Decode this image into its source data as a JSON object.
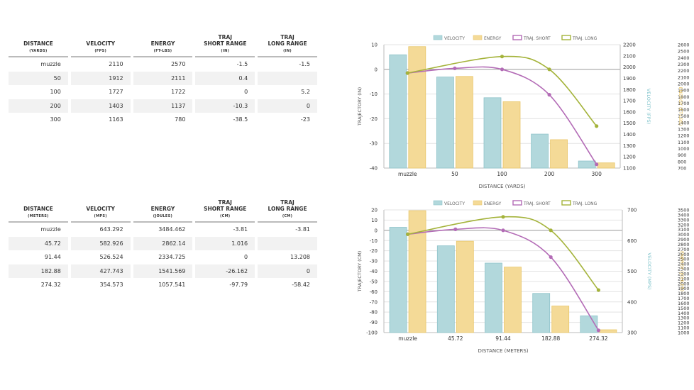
{
  "tables": [
    {
      "headers": [
        {
          "label": "DISTANCE",
          "unit": "(YARDS)"
        },
        {
          "label": "VELOCITY",
          "unit": "(FPS)"
        },
        {
          "label": "ENERGY",
          "unit": "(FT-LBS)"
        },
        {
          "label": "TRAJ\nSHORT RANGE",
          "unit": "(IN)"
        },
        {
          "label": "TRAJ\nLONG RANGE",
          "unit": "(IN)"
        }
      ],
      "rows": [
        [
          "muzzle",
          "2110",
          "2570",
          "-1.5",
          "-1.5"
        ],
        [
          "50",
          "1912",
          "2111",
          "0.4",
          ""
        ],
        [
          "100",
          "1727",
          "1722",
          "0",
          "5.2"
        ],
        [
          "200",
          "1403",
          "1137",
          "-10.3",
          "0"
        ],
        [
          "300",
          "1163",
          "780",
          "-38.5",
          "-23"
        ]
      ]
    },
    {
      "headers": [
        {
          "label": "DISTANCE",
          "unit": "(METERS)"
        },
        {
          "label": "VELOCITY",
          "unit": "(MPS)"
        },
        {
          "label": "ENERGY",
          "unit": "(JOULES)"
        },
        {
          "label": "TRAJ\nSHORT RANGE",
          "unit": "(CM)"
        },
        {
          "label": "TRAJ\nLONG RANGE",
          "unit": "(CM)"
        }
      ],
      "rows": [
        [
          "muzzle",
          "643.292",
          "3484.462",
          "-3.81",
          "-3.81"
        ],
        [
          "45.72",
          "582.926",
          "2862.14",
          "1.016",
          ""
        ],
        [
          "91.44",
          "526.524",
          "2334.725",
          "0",
          "13.208"
        ],
        [
          "182.88",
          "427.743",
          "1541.569",
          "-26.162",
          "0"
        ],
        [
          "274.32",
          "354.573",
          "1057.541",
          "-97.79",
          "-58.42"
        ]
      ]
    }
  ],
  "chart_data": [
    {
      "type": "bar",
      "categories": [
        "muzzle",
        "50",
        "100",
        "200",
        "300"
      ],
      "xlabel": "DISTANCE (YARDS)",
      "legend_position": "top",
      "legend": [
        "VELOCITY",
        "ENERGY",
        "TRAJ. SHORT",
        "TRAJ. LONG"
      ],
      "axes": {
        "y_left": {
          "label": "TRAJECTORY (IN)",
          "min": -40,
          "max": 10,
          "step": 10,
          "ticks": [
            "10",
            "0",
            "-10",
            "-20",
            "-30",
            "-40"
          ]
        },
        "y_vel": {
          "label": "VELOCITY (FPS)",
          "min": 1100,
          "max": 2200,
          "step": 100,
          "ticks": [
            "2200",
            "2100",
            "2000",
            "1900",
            "1800",
            "1700",
            "1600",
            "1500",
            "1400",
            "1300",
            "1200",
            "1100"
          ]
        },
        "y_energy": {
          "label": "ENERGY (FT-LBS)",
          "min": 700,
          "max": 2600,
          "step": 100,
          "ticks": [
            "2600",
            "2500",
            "2400",
            "2300",
            "2200",
            "2100",
            "2000",
            "1900",
            "1800",
            "1700",
            "1600",
            "1500",
            "1400",
            "1300",
            "1200",
            "1100",
            "1000",
            "900",
            "800",
            "700"
          ]
        }
      },
      "series": [
        {
          "name": "VELOCITY",
          "kind": "bar",
          "axis": "y_vel",
          "color": "#b2d8dc",
          "values": [
            2110,
            1912,
            1727,
            1403,
            1163
          ]
        },
        {
          "name": "ENERGY",
          "kind": "bar",
          "axis": "y_energy",
          "color": "#f4da97",
          "values": [
            2570,
            2111,
            1722,
            1137,
            780
          ]
        },
        {
          "name": "TRAJ. SHORT",
          "kind": "line",
          "axis": "y_left",
          "color": "#b36bb6",
          "values": [
            -1.5,
            0.4,
            0,
            -10.3,
            -38.5
          ]
        },
        {
          "name": "TRAJ. LONG",
          "kind": "line",
          "axis": "y_left",
          "color": "#a4b33a",
          "values": [
            -1.5,
            null,
            5.2,
            0,
            -23
          ]
        }
      ]
    },
    {
      "type": "bar",
      "categories": [
        "muzzle",
        "45.72",
        "91.44",
        "182.88",
        "274.32"
      ],
      "xlabel": "DISTANCE (METERS)",
      "legend_position": "top",
      "legend": [
        "VELOCITY",
        "ENERGY",
        "TRAJ. SHORT",
        "TRAJ. LONG"
      ],
      "axes": {
        "y_left": {
          "label": "TRAJECTORY (CM)",
          "min": -100,
          "max": 20,
          "step": 10,
          "ticks": [
            "20",
            "10",
            "0",
            "-10",
            "-20",
            "-30",
            "-40",
            "-50",
            "-60",
            "-70",
            "-80",
            "-90",
            "-100"
          ]
        },
        "y_vel": {
          "label": "VELOCITY (MPS)",
          "min": 300,
          "max": 700,
          "step": 100,
          "ticks": [
            "700",
            "600",
            "500",
            "400",
            "300"
          ]
        },
        "y_energy": {
          "label": "ENERGY (JOULES)",
          "min": 1000,
          "max": 3500,
          "step": 100,
          "ticks": [
            "3500",
            "3400",
            "3300",
            "3200",
            "3100",
            "3000",
            "2900",
            "2800",
            "2700",
            "2600",
            "2500",
            "2400",
            "2300",
            "2200",
            "2100",
            "2000",
            "1900",
            "1800",
            "1700",
            "1600",
            "1500",
            "1400",
            "1300",
            "1200",
            "1100",
            "1000"
          ]
        }
      },
      "series": [
        {
          "name": "VELOCITY",
          "kind": "bar",
          "axis": "y_vel",
          "color": "#b2d8dc",
          "values": [
            643.292,
            582.926,
            526.524,
            427.743,
            354.573
          ]
        },
        {
          "name": "ENERGY",
          "kind": "bar",
          "axis": "y_energy",
          "color": "#f4da97",
          "values": [
            3484.462,
            2862.14,
            2334.725,
            1541.569,
            1057.541
          ]
        },
        {
          "name": "TRAJ. SHORT",
          "kind": "line",
          "axis": "y_left",
          "color": "#b36bb6",
          "values": [
            -3.81,
            1.016,
            0,
            -26.162,
            -97.79
          ]
        },
        {
          "name": "TRAJ. LONG",
          "kind": "line",
          "axis": "y_left",
          "color": "#a4b33a",
          "values": [
            -3.81,
            null,
            13.208,
            0,
            -58.42
          ]
        }
      ]
    }
  ]
}
